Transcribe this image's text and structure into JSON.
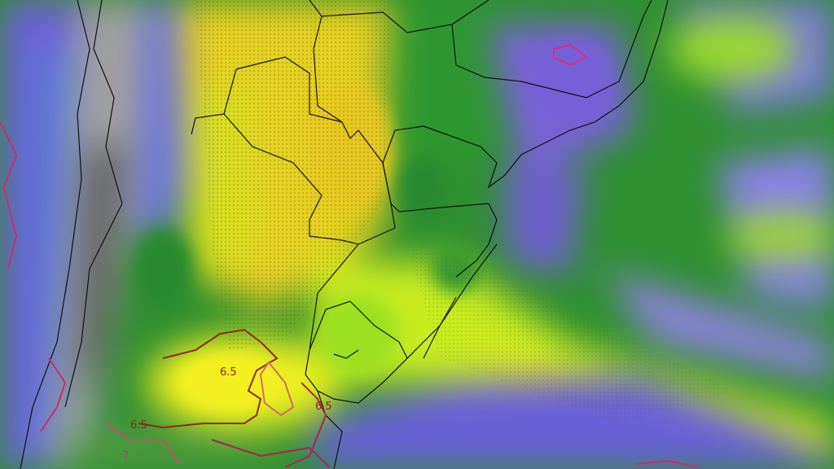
{
  "map": {
    "contour_labels": [
      {
        "text": "6.5",
        "color": "#8b2a1c"
      },
      {
        "text": "6.5",
        "color": "#8b2a1c"
      },
      {
        "text": "6.5",
        "color": "#8b2a1c"
      },
      {
        "text": "7",
        "color": "#c0307a"
      }
    ],
    "palette": {
      "low": "#6a5ad8",
      "mid_low": "#1f8a2a",
      "mid": "#8ad21e",
      "high": "#e8e61a",
      "peak": "#e8c020",
      "terrain": "#9a9a9a",
      "border": "#111111"
    }
  }
}
